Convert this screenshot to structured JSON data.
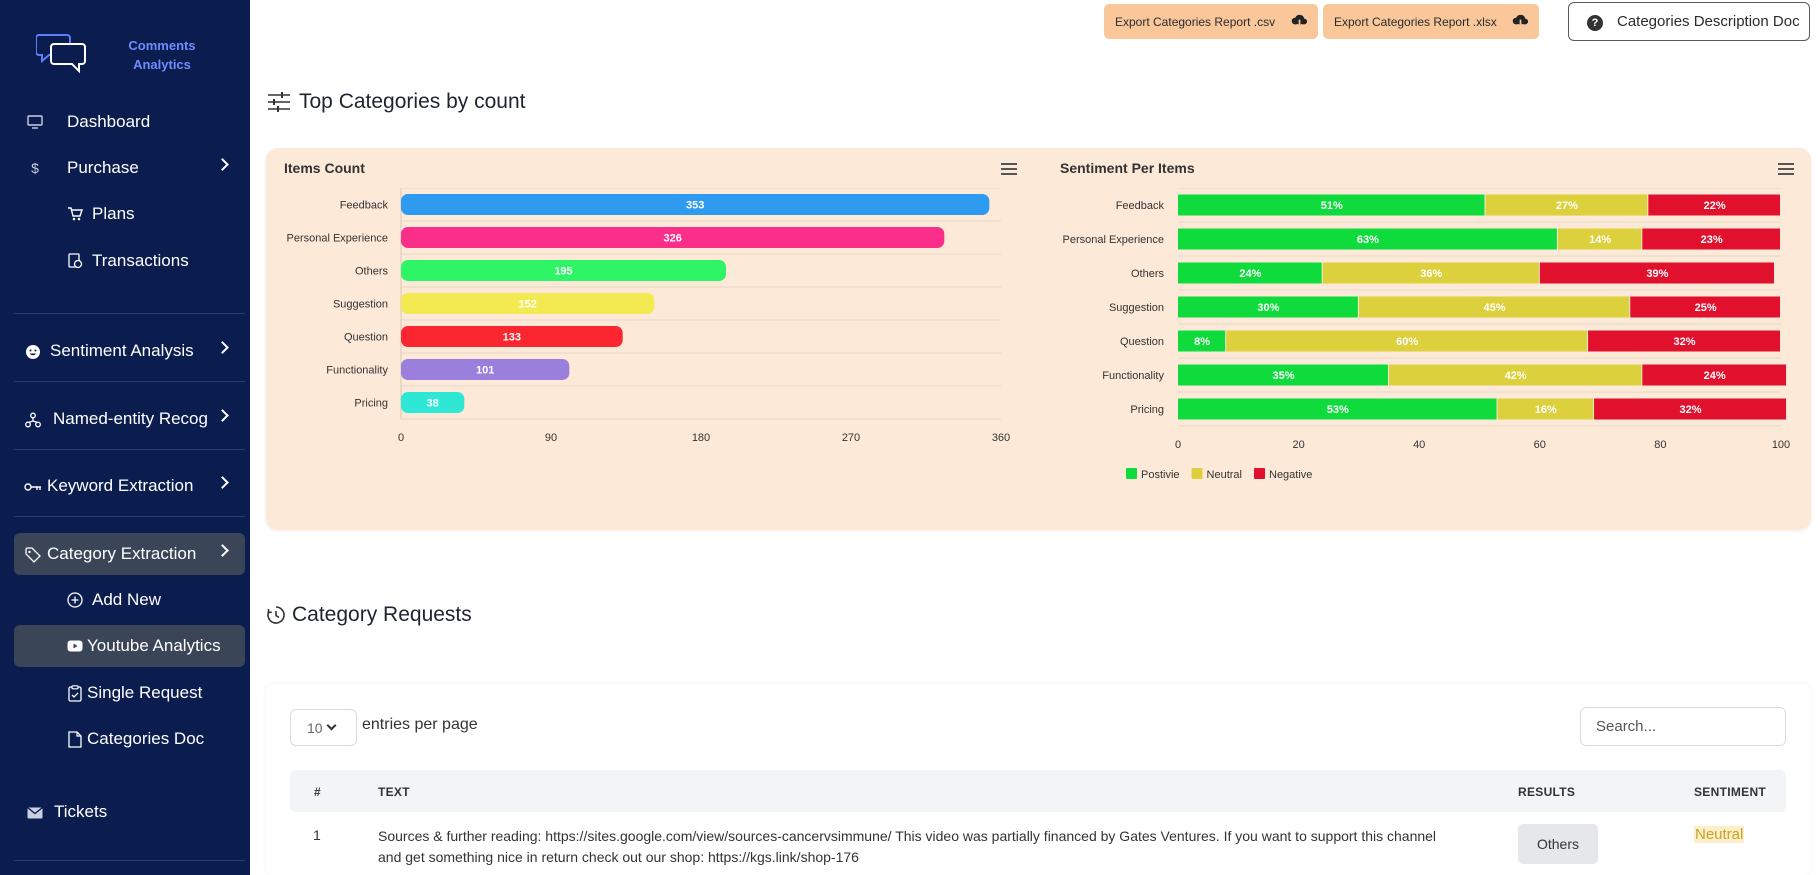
{
  "app": {
    "logo_line1": "Comments",
    "logo_line2": "Analytics"
  },
  "sidebar": {
    "items": [
      {
        "label": "Dashboard",
        "icon": "monitor-icon"
      },
      {
        "label": "Purchase",
        "icon": "dollar-icon"
      },
      {
        "label": "Plans",
        "icon": "cart-icon"
      },
      {
        "label": "Transactions",
        "icon": "receipt-icon"
      },
      {
        "label": "Sentiment Analysis",
        "icon": "smiley-icon"
      },
      {
        "label": "Named-entity Recog",
        "icon": "network-icon"
      },
      {
        "label": "Keyword Extraction",
        "icon": "key-icon"
      },
      {
        "label": "Category Extraction",
        "icon": "tag-icon"
      },
      {
        "label": "Add New",
        "icon": "plus-circle-icon"
      },
      {
        "label": "Youtube Analytics",
        "icon": "youtube-icon"
      },
      {
        "label": "Single Request",
        "icon": "clipboard-icon"
      },
      {
        "label": "Categories Doc",
        "icon": "document-icon"
      },
      {
        "label": "Tickets",
        "icon": "envelope-icon"
      }
    ]
  },
  "header": {
    "export_csv": "Export Categories Report .csv",
    "export_xlsx": "Export Categories Report .xlsx",
    "doc_button": "Categories Description Doc"
  },
  "top_categories": {
    "title": "Top Categories by count"
  },
  "chart_data": [
    {
      "type": "bar",
      "orientation": "horizontal",
      "title": "Items Count",
      "categories": [
        "Feedback",
        "Personal Experience",
        "Others",
        "Suggestion",
        "Question",
        "Functionality",
        "Pricing"
      ],
      "values": [
        353,
        326,
        195,
        152,
        133,
        101,
        38
      ],
      "colors": [
        "#2e9bf0",
        "#fb2f8a",
        "#2ef566",
        "#f2ea50",
        "#fb2630",
        "#9b7fdc",
        "#2ee8d5"
      ],
      "xlim": [
        0,
        360
      ],
      "xticks": [
        0,
        90,
        180,
        270,
        360
      ]
    },
    {
      "type": "bar",
      "orientation": "horizontal",
      "stacked": "percent",
      "title": "Sentiment Per Items",
      "categories": [
        "Feedback",
        "Personal Experience",
        "Others",
        "Suggestion",
        "Question",
        "Functionality",
        "Pricing"
      ],
      "series": [
        {
          "name": "Postivie",
          "color": "#0fdc3c",
          "values": [
            51,
            63,
            24,
            30,
            8,
            35,
            53
          ]
        },
        {
          "name": "Neutral",
          "color": "#dcd03c",
          "values": [
            27,
            14,
            36,
            45,
            60,
            42,
            16
          ]
        },
        {
          "name": "Negative",
          "color": "#e1102d",
          "values": [
            22,
            23,
            39,
            25,
            32,
            24,
            32
          ]
        }
      ],
      "xlim": [
        0,
        100
      ],
      "xticks": [
        0,
        20,
        40,
        60,
        80,
        100
      ],
      "legend": "bottom-left"
    }
  ],
  "requests": {
    "title": "Category Requests",
    "entries_value": "10",
    "entries_label": "entries per page",
    "search_placeholder": "Search...",
    "columns": {
      "num": "#",
      "text": "TEXT",
      "results": "RESULTS",
      "sentiment": "SENTIMENT"
    },
    "rows": [
      {
        "num": "1",
        "text": "Sources & further reading: https://sites.google.com/view/sources-cancervsimmune/ This video was partially financed by Gates Ventures. If you want to support this channel and get something nice in return check out our shop: https://kgs.link/shop-176",
        "result": "Others",
        "sentiment": "Neutral"
      }
    ]
  }
}
